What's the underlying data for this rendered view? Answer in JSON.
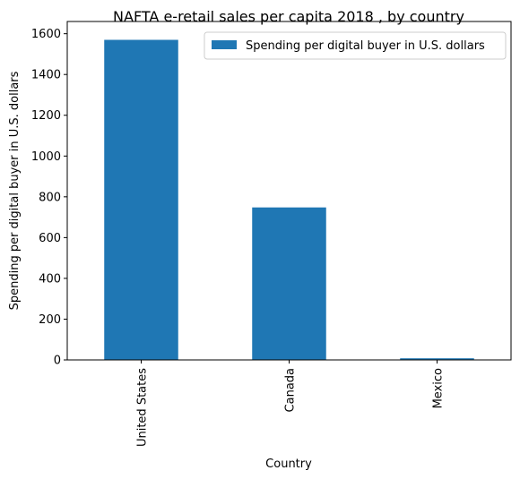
{
  "chart_data": {
    "type": "bar",
    "title": "NAFTA e-retail sales per capita 2018 , by country",
    "xlabel": "Country",
    "ylabel": "Spending per digital buyer in U.S. dollars",
    "categories": [
      "United States",
      "Canada",
      "Mexico"
    ],
    "series": [
      {
        "name": "Spending per digital buyer in U.S. dollars",
        "values": [
          1570,
          748,
          8
        ],
        "color": "#1f77b4"
      }
    ],
    "ylim": [
      0,
      1660
    ],
    "yticks": [
      0,
      200,
      400,
      600,
      800,
      1000,
      1200,
      1400,
      1600
    ],
    "legend_position": "top-right",
    "grid": false
  }
}
